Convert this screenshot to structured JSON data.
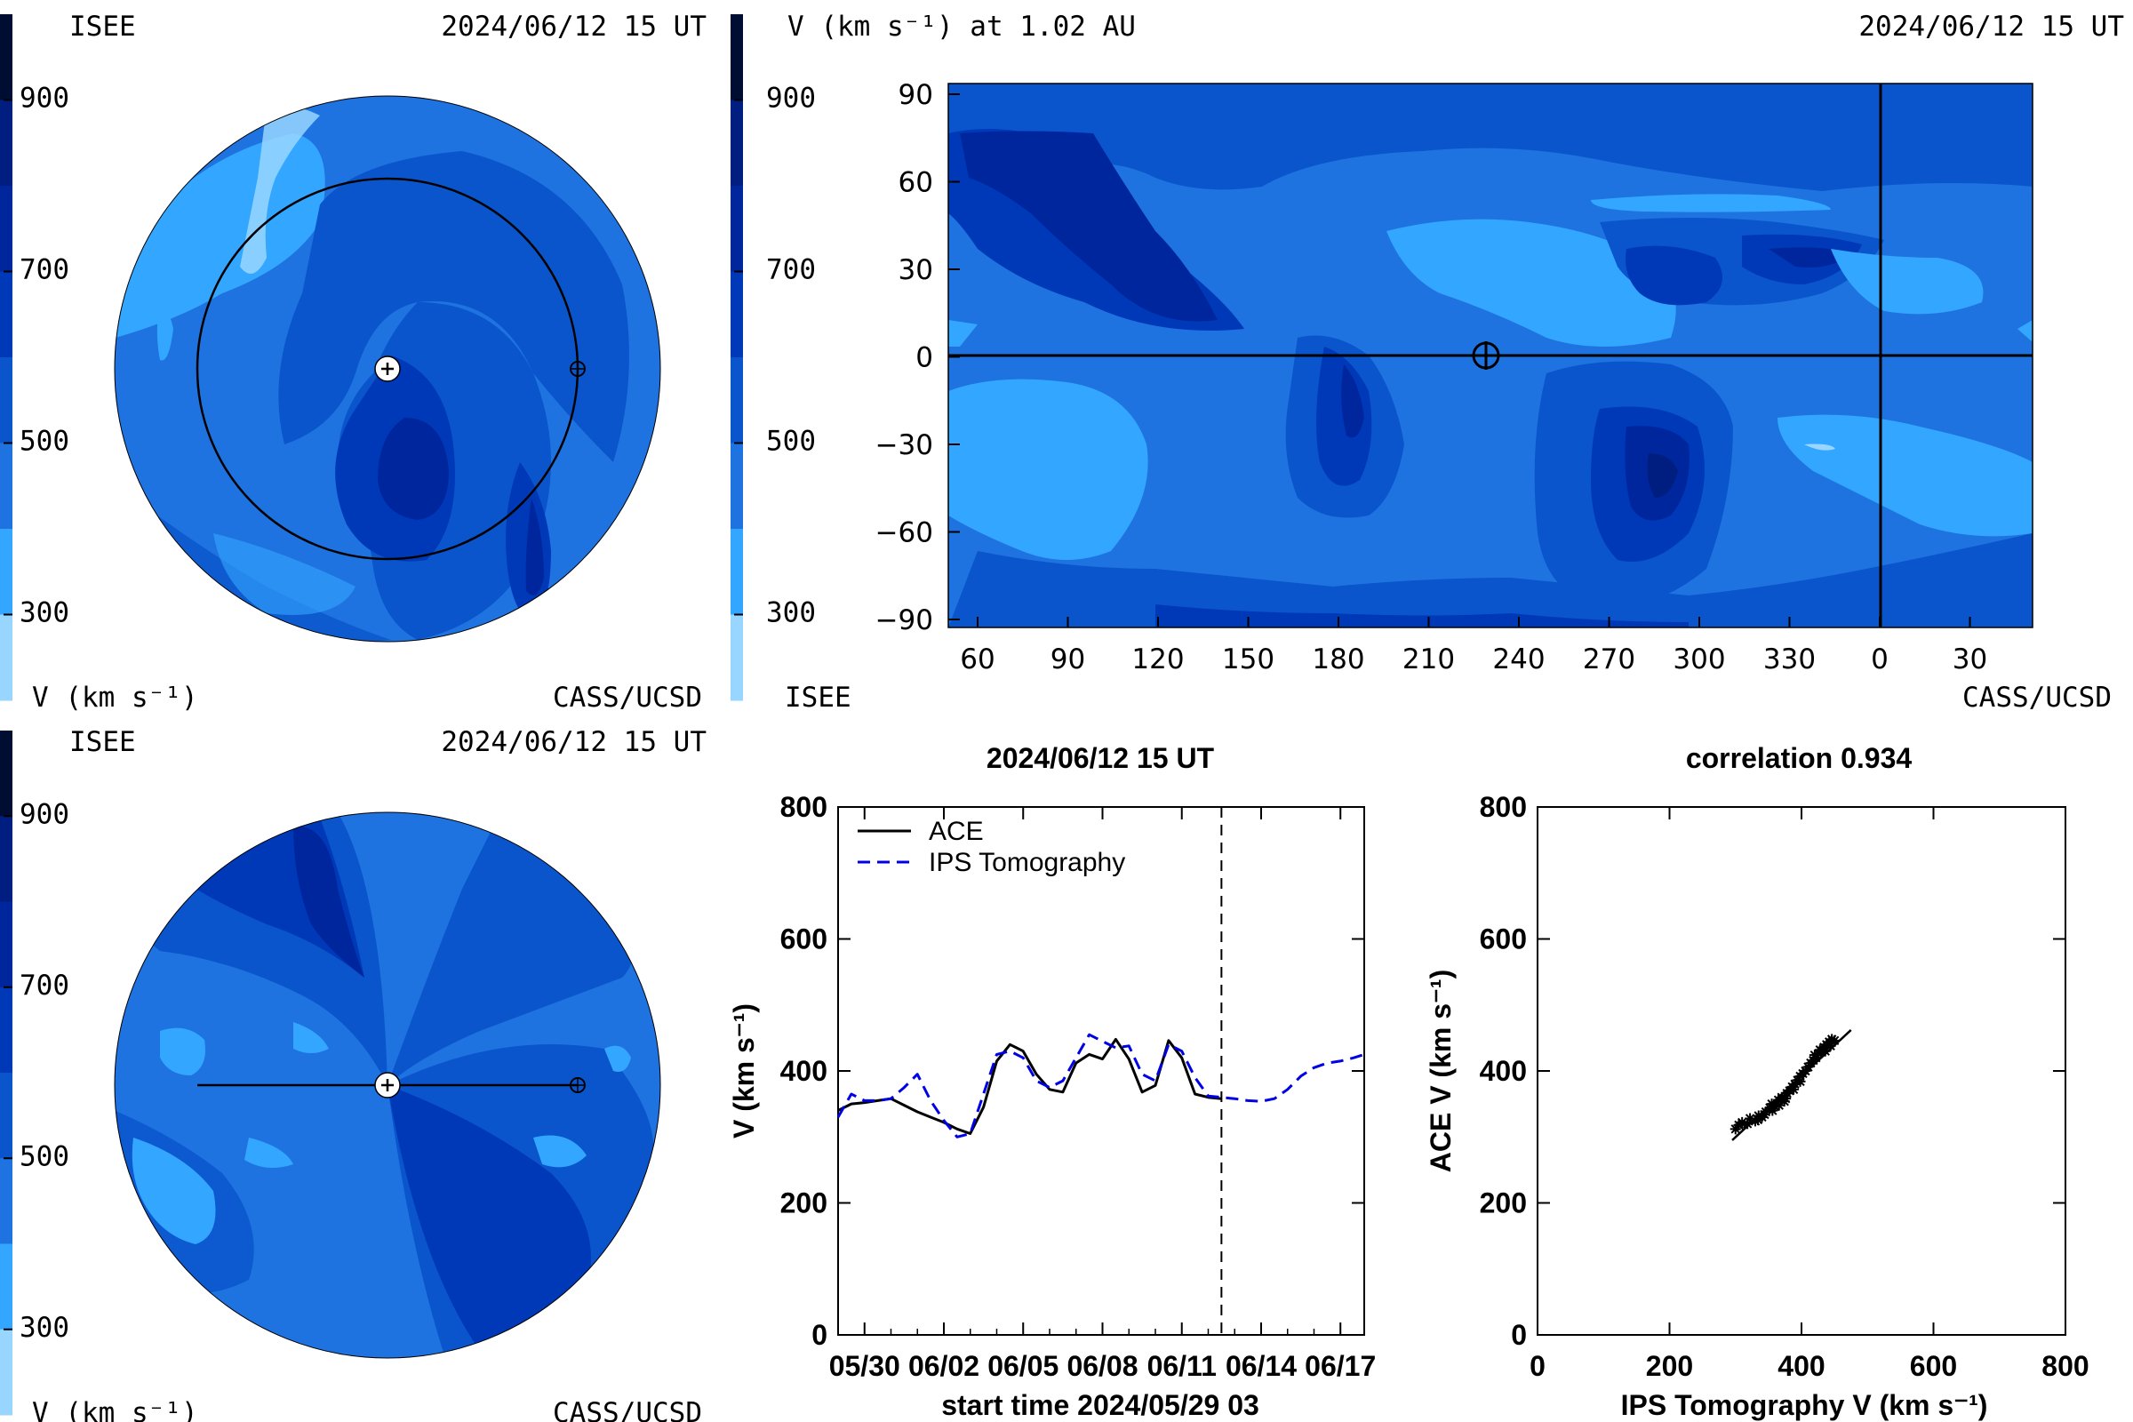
{
  "palette": {
    "v900": "#000d33",
    "v800": "#001e80",
    "v700": "#00269e",
    "v600": "#0039b8",
    "v500": "#0a55cc",
    "v400": "#1e73e0",
    "v300": "#33a6ff",
    "v200": "#99d6ff",
    "ace": "#000000",
    "ips": "#0000e6"
  },
  "colorbar": {
    "ticks": [
      "900",
      "700",
      "500",
      "300"
    ],
    "bands": [
      "v900",
      "v800",
      "v700",
      "v600",
      "v500",
      "v400",
      "v300",
      "v200"
    ]
  },
  "panel_tl": {
    "left_label": "ISEE",
    "right_label": "2024/06/12 15 UT",
    "bottom_left": "V (km s⁻¹)",
    "bottom_right": "CASS/UCSD"
  },
  "panel_tr": {
    "title_left": "V (km s⁻¹) at 1.02 AU",
    "title_right": "2024/06/12 15 UT",
    "bottom_left": "ISEE",
    "bottom_right": "CASS/UCSD",
    "y_ticks": [
      "90",
      "60",
      "30",
      "0",
      "−30",
      "−60",
      "−90"
    ],
    "x_ticks": [
      "60",
      "90",
      "120",
      "150",
      "180",
      "210",
      "240",
      "270",
      "300",
      "330",
      "0",
      "30"
    ]
  },
  "panel_bl": {
    "left_label": "ISEE",
    "right_label": "2024/06/12 15 UT",
    "bottom_left": "V (km s⁻¹)",
    "bottom_right": "CASS/UCSD"
  },
  "chart_data": [
    {
      "type": "line",
      "title": "2024/06/12 15 UT",
      "xlabel": "start time 2024/05/29 03",
      "ylabel": "V (km s⁻¹)",
      "ylim": [
        0,
        800
      ],
      "y_ticks": [
        "0",
        "200",
        "400",
        "600",
        "800"
      ],
      "x_tick_labels": [
        "05/30",
        "06/02",
        "06/05",
        "06/08",
        "06/11",
        "06/14",
        "06/17"
      ],
      "x_tick_days": [
        1,
        4,
        7,
        10,
        13,
        16,
        19
      ],
      "xlim_days": [
        0,
        19.9
      ],
      "current_time_day": 14.5,
      "legend": [
        "ACE",
        "IPS Tomography"
      ],
      "series": [
        {
          "name": "ACE",
          "x": [
            0,
            0.5,
            1,
            1.5,
            2,
            2.5,
            3,
            3.5,
            4,
            4.5,
            5,
            5.5,
            6,
            6.5,
            7,
            7.5,
            8,
            8.5,
            9,
            9.5,
            10,
            10.5,
            11,
            11.5,
            12,
            12.5,
            13,
            13.5,
            14,
            14.5
          ],
          "y": [
            340,
            350,
            352,
            355,
            358,
            348,
            338,
            330,
            322,
            312,
            305,
            345,
            415,
            440,
            430,
            395,
            372,
            368,
            412,
            425,
            418,
            448,
            418,
            368,
            378,
            446,
            420,
            365,
            360,
            358
          ]
        },
        {
          "name": "IPS Tomography",
          "x": [
            0,
            0.5,
            1,
            1.5,
            2,
            2.5,
            3,
            3.5,
            4,
            4.5,
            5,
            5.5,
            6,
            6.5,
            7,
            7.5,
            8,
            8.5,
            9,
            9.5,
            10,
            10.5,
            11,
            11.5,
            12,
            12.5,
            13,
            13.5,
            14,
            14.5,
            15,
            15.5,
            16,
            16.5,
            17,
            17.5,
            18,
            18.5,
            19,
            19.5,
            19.9
          ],
          "y": [
            330,
            365,
            355,
            355,
            358,
            375,
            395,
            355,
            325,
            300,
            305,
            365,
            425,
            430,
            420,
            385,
            375,
            385,
            420,
            455,
            445,
            435,
            438,
            395,
            385,
            440,
            430,
            390,
            362,
            360,
            358,
            355,
            354,
            358,
            372,
            392,
            405,
            412,
            415,
            420,
            425
          ]
        }
      ]
    },
    {
      "type": "scatter",
      "title": "correlation 0.934",
      "xlabel": "IPS Tomography V (km s⁻¹)",
      "ylabel": "ACE V (km s⁻¹)",
      "xlim": [
        0,
        800
      ],
      "ylim": [
        0,
        800
      ],
      "x_ticks": [
        "0",
        "200",
        "400",
        "600",
        "800"
      ],
      "y_ticks": [
        "0",
        "200",
        "400",
        "600",
        "800"
      ],
      "points": [
        [
          300,
          312
        ],
        [
          305,
          318
        ],
        [
          310,
          322
        ],
        [
          318,
          320
        ],
        [
          322,
          328
        ],
        [
          330,
          324
        ],
        [
          335,
          332
        ],
        [
          340,
          330
        ],
        [
          346,
          338
        ],
        [
          352,
          344
        ],
        [
          355,
          350
        ],
        [
          360,
          346
        ],
        [
          365,
          356
        ],
        [
          370,
          360
        ],
        [
          374,
          354
        ],
        [
          378,
          366
        ],
        [
          382,
          370
        ],
        [
          386,
          376
        ],
        [
          390,
          380
        ],
        [
          394,
          386
        ],
        [
          398,
          392
        ],
        [
          402,
          396
        ],
        [
          406,
          400
        ],
        [
          410,
          406
        ],
        [
          414,
          412
        ],
        [
          418,
          416
        ],
        [
          422,
          420
        ],
        [
          426,
          426
        ],
        [
          430,
          430
        ],
        [
          434,
          436
        ],
        [
          438,
          440
        ],
        [
          442,
          444
        ],
        [
          446,
          448
        ],
        [
          450,
          446
        ],
        [
          398,
          384
        ],
        [
          388,
          372
        ],
        [
          376,
          358
        ],
        [
          366,
          348
        ],
        [
          356,
          340
        ],
        [
          344,
          334
        ],
        [
          334,
          326
        ],
        [
          420,
          424
        ],
        [
          428,
          432
        ],
        [
          436,
          430
        ],
        [
          444,
          438
        ]
      ],
      "fit_line": [
        [
          295,
          295
        ],
        [
          475,
          462
        ]
      ]
    }
  ]
}
